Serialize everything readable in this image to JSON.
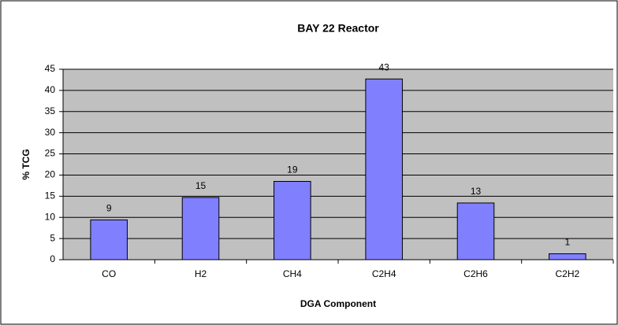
{
  "chart_data": {
    "type": "bar",
    "title": "BAY 22 Reactor",
    "x_label": "DGA Component",
    "y_label": "% TCG",
    "categories": [
      "CO",
      "H2",
      "CH4",
      "C2H4",
      "C2H6",
      "C2H2"
    ],
    "values": [
      9.4,
      14.7,
      18.5,
      42.7,
      13.4,
      1.4
    ],
    "value_labels": [
      "9",
      "15",
      "19",
      "43",
      "13",
      "1"
    ],
    "color": "#8080ff",
    "ylim": [
      0,
      45
    ],
    "yticks": [
      0,
      5,
      10,
      15,
      20,
      25,
      30,
      35,
      40,
      45
    ],
    "grid": true
  }
}
